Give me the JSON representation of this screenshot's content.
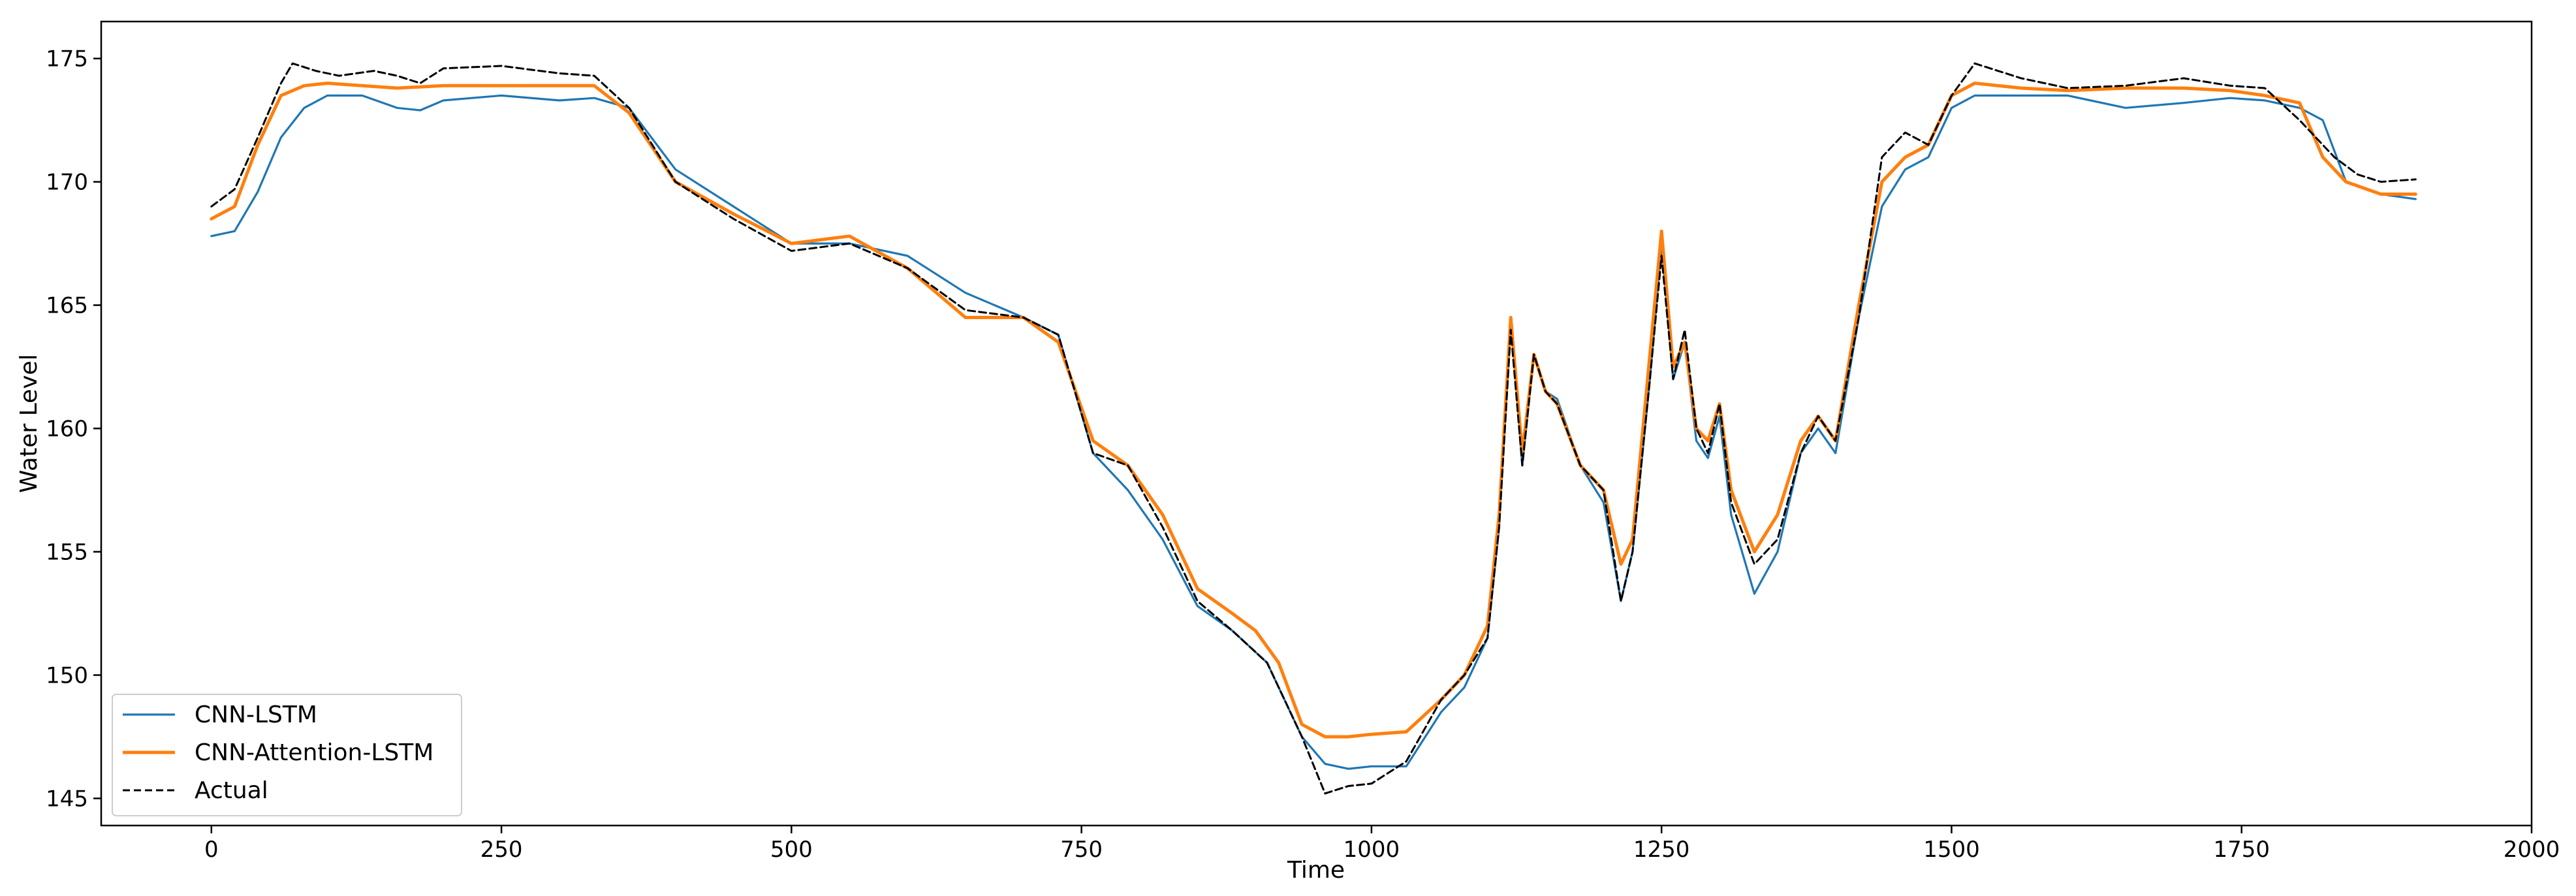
{
  "chart_data": {
    "type": "line",
    "title": "",
    "xlabel": "Time",
    "ylabel": "Water Level",
    "xlim": [
      -95,
      2000
    ],
    "ylim": [
      143.9,
      176.5
    ],
    "xticks": [
      0,
      250,
      500,
      750,
      1000,
      1250,
      1500,
      1750,
      2000
    ],
    "yticks": [
      145,
      150,
      155,
      160,
      165,
      170,
      175
    ],
    "grid": false,
    "legend_position": "lower-left",
    "series": [
      {
        "name": "CNN-LSTM",
        "color": "#1f77b4",
        "line_style": "solid",
        "x": [
          0,
          20,
          40,
          60,
          80,
          100,
          130,
          160,
          180,
          200,
          250,
          300,
          330,
          360,
          400,
          450,
          500,
          550,
          600,
          650,
          700,
          730,
          760,
          790,
          820,
          850,
          880,
          910,
          940,
          960,
          980,
          1000,
          1030,
          1060,
          1080,
          1100,
          1110,
          1120,
          1130,
          1140,
          1150,
          1160,
          1180,
          1200,
          1215,
          1225,
          1240,
          1250,
          1260,
          1270,
          1280,
          1290,
          1300,
          1310,
          1330,
          1350,
          1370,
          1385,
          1400,
          1420,
          1440,
          1460,
          1480,
          1500,
          1520,
          1560,
          1600,
          1650,
          1700,
          1740,
          1770,
          1800,
          1820,
          1840,
          1870,
          1900
        ],
        "y": [
          167.8,
          168.0,
          169.6,
          171.8,
          173.0,
          173.5,
          173.5,
          173.0,
          172.9,
          173.3,
          173.5,
          173.3,
          173.4,
          173.0,
          170.5,
          169.0,
          167.5,
          167.5,
          167.0,
          165.5,
          164.5,
          163.8,
          159.0,
          157.5,
          155.5,
          152.8,
          151.8,
          150.5,
          147.5,
          146.4,
          146.2,
          146.3,
          146.3,
          148.5,
          149.5,
          151.5,
          156.0,
          164.5,
          158.5,
          163.0,
          161.5,
          161.2,
          158.5,
          157.0,
          153.0,
          155.0,
          162.0,
          167.5,
          162.0,
          163.5,
          159.5,
          158.8,
          160.5,
          156.5,
          153.3,
          155.0,
          159.0,
          160.0,
          159.0,
          164.5,
          169.0,
          170.5,
          171.0,
          173.0,
          173.5,
          173.5,
          173.5,
          173.0,
          173.2,
          173.4,
          173.3,
          173.0,
          172.5,
          170.0,
          169.5,
          169.3
        ]
      },
      {
        "name": "CNN-Attention-LSTM",
        "color": "#ff7f0e",
        "line_style": "solid",
        "x": [
          0,
          20,
          40,
          60,
          80,
          100,
          130,
          160,
          200,
          250,
          300,
          330,
          360,
          400,
          450,
          500,
          550,
          600,
          650,
          700,
          730,
          760,
          790,
          820,
          850,
          880,
          900,
          920,
          940,
          960,
          980,
          1000,
          1030,
          1060,
          1080,
          1100,
          1110,
          1120,
          1130,
          1140,
          1150,
          1160,
          1180,
          1200,
          1215,
          1225,
          1240,
          1250,
          1260,
          1270,
          1280,
          1290,
          1300,
          1310,
          1330,
          1350,
          1370,
          1385,
          1400,
          1420,
          1440,
          1460,
          1480,
          1500,
          1520,
          1560,
          1600,
          1650,
          1700,
          1740,
          1770,
          1800,
          1820,
          1840,
          1870,
          1900
        ],
        "y": [
          168.5,
          169.0,
          171.5,
          173.5,
          173.9,
          174.0,
          173.9,
          173.8,
          173.9,
          173.9,
          173.9,
          173.9,
          172.8,
          170.0,
          168.7,
          167.5,
          167.8,
          166.5,
          164.5,
          164.5,
          163.5,
          159.5,
          158.5,
          156.5,
          153.5,
          152.5,
          151.8,
          150.5,
          148.0,
          147.5,
          147.5,
          147.6,
          147.7,
          149.0,
          150.0,
          152.0,
          156.5,
          164.5,
          159.0,
          163.0,
          161.5,
          161.0,
          158.5,
          157.5,
          154.5,
          155.5,
          163.0,
          168.0,
          162.5,
          163.5,
          160.0,
          159.5,
          161.0,
          157.5,
          155.0,
          156.5,
          159.5,
          160.5,
          159.5,
          165.0,
          170.0,
          171.0,
          171.5,
          173.5,
          174.0,
          173.8,
          173.7,
          173.8,
          173.8,
          173.7,
          173.5,
          173.2,
          171.0,
          170.0,
          169.5,
          169.5
        ]
      },
      {
        "name": "Actual",
        "color": "#000000",
        "line_style": "dashed",
        "x": [
          0,
          20,
          40,
          60,
          70,
          90,
          110,
          140,
          160,
          180,
          200,
          250,
          300,
          330,
          360,
          400,
          450,
          500,
          550,
          600,
          650,
          700,
          730,
          760,
          790,
          820,
          850,
          880,
          910,
          940,
          960,
          980,
          1000,
          1030,
          1060,
          1080,
          1100,
          1110,
          1120,
          1130,
          1140,
          1150,
          1160,
          1180,
          1200,
          1215,
          1225,
          1240,
          1250,
          1260,
          1270,
          1280,
          1290,
          1300,
          1310,
          1330,
          1350,
          1370,
          1385,
          1400,
          1420,
          1440,
          1460,
          1480,
          1500,
          1520,
          1560,
          1600,
          1650,
          1700,
          1740,
          1770,
          1800,
          1830,
          1850,
          1870,
          1900
        ],
        "y": [
          169.0,
          169.7,
          171.8,
          174.0,
          174.8,
          174.5,
          174.3,
          174.5,
          174.3,
          174.0,
          174.6,
          174.7,
          174.4,
          174.3,
          173.0,
          170.0,
          168.5,
          167.2,
          167.5,
          166.5,
          164.8,
          164.5,
          163.8,
          159.0,
          158.5,
          156.0,
          153.0,
          151.8,
          150.5,
          147.5,
          145.2,
          145.5,
          145.6,
          146.5,
          149.0,
          150.0,
          151.5,
          156.0,
          164.0,
          158.5,
          163.0,
          161.5,
          161.0,
          158.5,
          157.5,
          153.0,
          155.0,
          162.0,
          167.0,
          162.0,
          164.0,
          160.0,
          159.0,
          161.0,
          157.0,
          154.5,
          155.5,
          159.0,
          160.5,
          159.5,
          164.5,
          171.0,
          172.0,
          171.5,
          173.5,
          174.8,
          174.2,
          173.8,
          173.9,
          174.2,
          173.9,
          173.8,
          172.5,
          171.0,
          170.3,
          170.0,
          170.1
        ]
      }
    ]
  }
}
